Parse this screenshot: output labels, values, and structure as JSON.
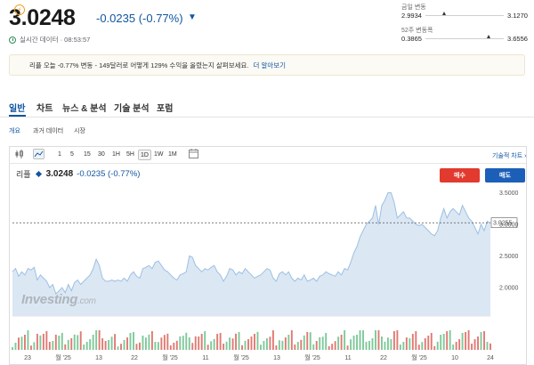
{
  "quote": {
    "price": "3.0248",
    "change": "-0.0235 (-0.77%)",
    "realtime_label": "실시간 데이터 · 08:53:57"
  },
  "ranges": {
    "day_label": "금일 변동",
    "day_low": "2.9934",
    "day_high": "3.1270",
    "day_position": 0.24,
    "week52_label": "52주 변동폭",
    "week52_low": "0.3865",
    "week52_high": "3.6556",
    "week52_position": 0.81
  },
  "banner": {
    "text": "리플 오늘 -0.77% 변동 - 149달러로 어떻게 129% 수익을 올렸는지 살펴보세요.",
    "link": "더 알아보기"
  },
  "tabs": [
    "일반",
    "차트",
    "뉴스 & 분석",
    "기술 분석",
    "포럼"
  ],
  "subtabs": [
    "개요",
    "과거 데이터",
    "시장"
  ],
  "toolbar": {
    "timeframes": [
      "1",
      "5",
      "15",
      "30",
      "1H",
      "5H",
      "1D",
      "1W",
      "1M"
    ],
    "selected": "1D",
    "tech_link": "기술적 차트 ›"
  },
  "legend": {
    "name": "리플",
    "price": "3.0248",
    "change": "-0.0235 (-0.77%)"
  },
  "buttons": {
    "sell": "매수",
    "buy": "매도"
  },
  "watermark": {
    "brand": "Investing",
    "suffix": ".com"
  },
  "colors": {
    "accent": "#1256a0",
    "sell": "#e23a2e",
    "buy": "#1c5fb8",
    "area_fill": "#dbe7f3",
    "vol_up": "#7fc99a",
    "vol_down": "#e07a73"
  },
  "chart_data": {
    "type": "area",
    "ylim": [
      1.55,
      3.62
    ],
    "y_ticks": [
      "3.5000",
      "3.0000",
      "2.5000",
      "2.0000"
    ],
    "y_tick_values": [
      3.5,
      3.0,
      2.5,
      2.0
    ],
    "current": "3.0255",
    "current_value": 3.0255,
    "x_ticks": [
      "23",
      "월 '25",
      "13",
      "22",
      "월 '25",
      "11",
      "월 '25",
      "13",
      "월 '25",
      "11",
      "22",
      "월 '25",
      "10",
      "24"
    ],
    "values": [
      2.25,
      2.3,
      2.18,
      2.25,
      2.2,
      2.3,
      2.28,
      2.32,
      2.12,
      2.2,
      2.15,
      2.1,
      2.0,
      2.05,
      1.9,
      1.95,
      2.0,
      1.92,
      2.05,
      1.95,
      2.08,
      2.12,
      2.05,
      2.1,
      2.15,
      2.2,
      2.3,
      2.45,
      2.35,
      2.15,
      2.1,
      2.1,
      2.12,
      2.1,
      2.12,
      2.1,
      2.15,
      2.1,
      2.2,
      2.25,
      2.18,
      2.15,
      2.3,
      2.32,
      2.35,
      2.3,
      2.4,
      2.42,
      2.35,
      2.28,
      2.25,
      2.2,
      2.15,
      2.12,
      2.2,
      2.22,
      2.25,
      2.5,
      2.48,
      2.35,
      2.3,
      2.25,
      2.3,
      2.28,
      2.32,
      2.35,
      2.25,
      2.2,
      2.1,
      2.18,
      2.3,
      2.28,
      2.2,
      2.25,
      2.22,
      2.3,
      2.25,
      2.2,
      2.15,
      2.18,
      2.2,
      2.25,
      2.3,
      2.28,
      2.15,
      2.1,
      2.22,
      2.25,
      2.2,
      2.25,
      2.15,
      2.1,
      2.15,
      2.12,
      2.2,
      2.1,
      2.12,
      2.15,
      2.1,
      2.18,
      2.2,
      2.25,
      2.22,
      2.2,
      2.18,
      2.25,
      2.2,
      2.3,
      2.28,
      2.4,
      2.55,
      2.65,
      2.8,
      2.9,
      3.0,
      3.05,
      3.1,
      3.3,
      3.0,
      3.3,
      3.38,
      3.5,
      3.5,
      3.35,
      3.1,
      3.15,
      3.2,
      3.1,
      3.1,
      3.05,
      3.0,
      2.98,
      3.0,
      2.95,
      2.9,
      2.85,
      2.82,
      2.9,
      3.1,
      3.25,
      3.1,
      3.2,
      3.25,
      3.2,
      3.15,
      3.3,
      3.2,
      3.1,
      3.05,
      2.95,
      2.85,
      3.0,
      2.9,
      3.05,
      3.02
    ]
  }
}
